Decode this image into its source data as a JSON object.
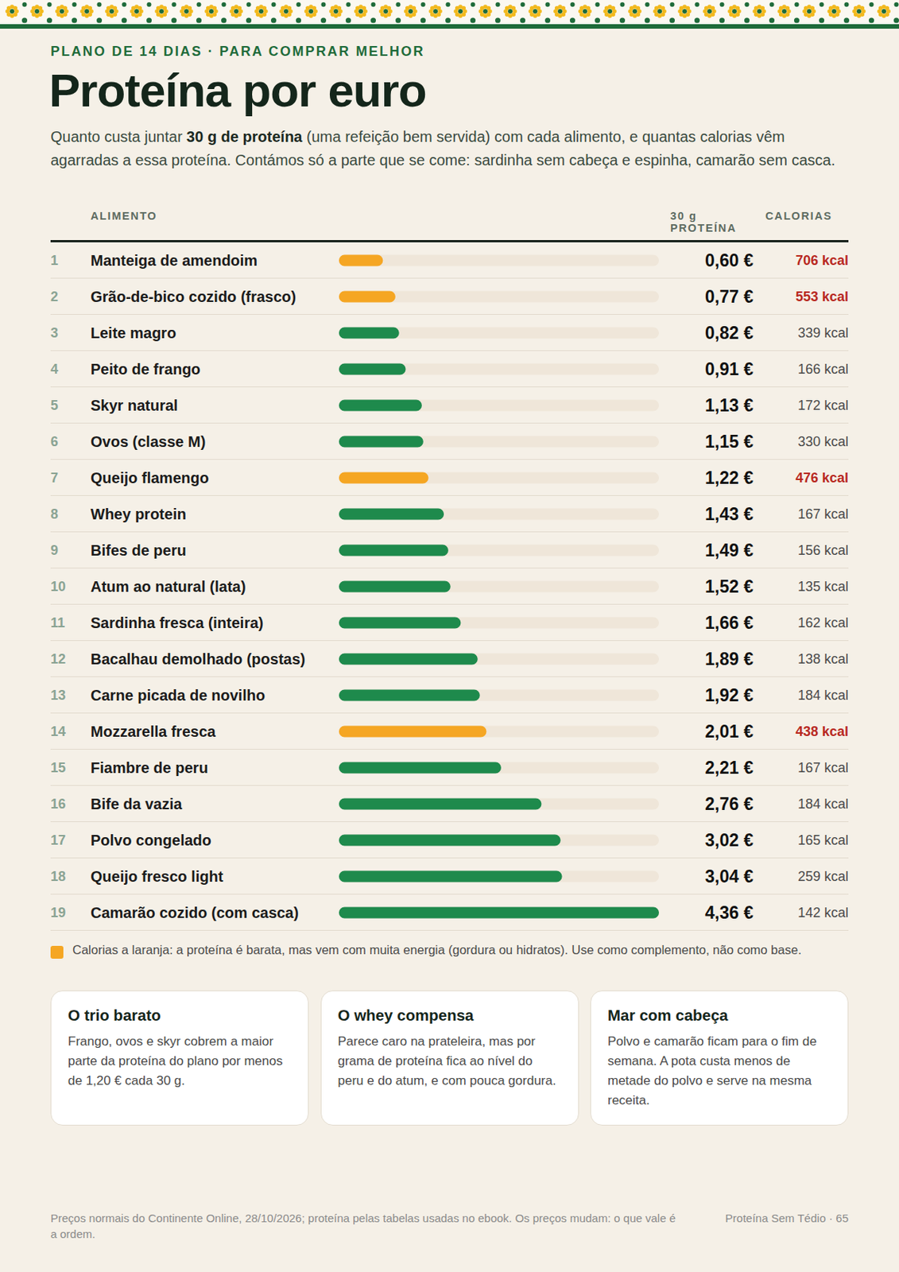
{
  "header": {
    "kicker": "PLANO DE 14 DIAS · PARA COMPRAR MELHOR",
    "title": "Proteína por euro",
    "subtitle": [
      {
        "text": "Quanto custa juntar ",
        "bold": false
      },
      {
        "text": "30 g de proteína",
        "bold": true
      },
      {
        "text": " (uma refeição bem servida) com cada alimento, e quantas calorias vêm agarradas a essa proteína. Contámos só a parte que se come: sardinha sem cabeça e espinha, camarão sem casca.",
        "bold": false
      }
    ]
  },
  "chart_data": {
    "type": "bar",
    "orientation": "horizontal",
    "columns": [
      "ALIMENTO",
      "30 g PROTEÍNA",
      "CALORIAS"
    ],
    "ranks": [
      1,
      2,
      3,
      4,
      5,
      6,
      7,
      8,
      9,
      10,
      11,
      12,
      13,
      14,
      15,
      16,
      17,
      18,
      19
    ],
    "categories": [
      "Manteiga de amendoim",
      "Grão-de-bico cozido (frasco)",
      "Leite magro",
      "Peito de frango",
      "Skyr natural",
      "Ovos (classe M)",
      "Queijo flamengo",
      "Whey protein",
      "Bifes de peru",
      "Atum ao natural (lata)",
      "Sardinha fresca (inteira)",
      "Bacalhau demolhado (postas)",
      "Carne picada de novilho",
      "Mozzarella fresca",
      "Fiambre de peru",
      "Bife da vazia",
      "Polvo congelado",
      "Queijo fresco light",
      "Camarão cozido (com casca)"
    ],
    "values": [
      0.6,
      0.77,
      0.82,
      0.91,
      1.13,
      1.15,
      1.22,
      1.43,
      1.49,
      1.52,
      1.66,
      1.89,
      1.92,
      2.01,
      2.21,
      2.76,
      3.02,
      3.04,
      4.36
    ],
    "value_labels": [
      "0,60 €",
      "0,77 €",
      "0,82 €",
      "0,91 €",
      "1,13 €",
      "1,15 €",
      "1,22 €",
      "1,43 €",
      "1,49 €",
      "1,52 €",
      "1,66 €",
      "1,89 €",
      "1,92 €",
      "2,01 €",
      "2,21 €",
      "2,76 €",
      "3,02 €",
      "3,04 €",
      "4,36 €"
    ],
    "colors": [
      "#f5a623",
      "#f5a623",
      "#1e8a4c",
      "#1e8a4c",
      "#1e8a4c",
      "#1e8a4c",
      "#f5a623",
      "#1e8a4c",
      "#1e8a4c",
      "#1e8a4c",
      "#1e8a4c",
      "#1e8a4c",
      "#1e8a4c",
      "#f5a623",
      "#1e8a4c",
      "#1e8a4c",
      "#1e8a4c",
      "#1e8a4c",
      "#1e8a4c"
    ],
    "calories": [
      "706 kcal",
      "553 kcal",
      "339 kcal",
      "166 kcal",
      "172 kcal",
      "330 kcal",
      "476 kcal",
      "167 kcal",
      "156 kcal",
      "135 kcal",
      "162 kcal",
      "138 kcal",
      "184 kcal",
      "438 kcal",
      "167 kcal",
      "184 kcal",
      "165 kcal",
      "259 kcal",
      "142 kcal"
    ],
    "xlim": [
      0,
      4.36
    ],
    "tick_labels": false,
    "grid": false
  },
  "note": {
    "color": "#f5a623",
    "text": "Calorias a laranja: a proteína é barata, mas vem com muita energia (gordura ou hidratos). Use como complemento, não como base."
  },
  "cards": [
    {
      "title": "O trio barato",
      "text": "Frango, ovos e skyr cobrem a maior parte da proteína do plano por menos de 1,20 € cada 30 g."
    },
    {
      "title": "O whey compensa",
      "text": "Parece caro na prateleira, mas por grama de proteína fica ao nível do peru e do atum, e com pouca gordura."
    },
    {
      "title": "Mar com cabeça",
      "text": "Polvo e camarão ficam para o fim de semana. A pota custa menos de metade do polvo e serve na mesma receita."
    }
  ],
  "footer": {
    "source": "Preços normais do Continente Online, 28/10/2026; proteína pelas tabelas usadas no ebook. Os preços mudam: o que vale é a ordem.",
    "page": "Proteína Sem Tédio · 65"
  }
}
